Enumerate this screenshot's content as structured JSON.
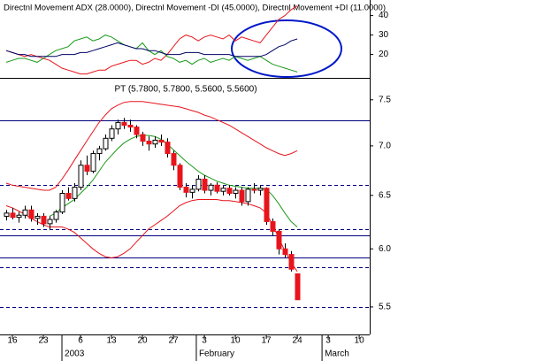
{
  "chart_data": [
    {
      "type": "line",
      "title": "Directnl Movement ADX (28.0000), Directnl Movement -DI (45.0000), Directnl Movement +DI (11.0000)",
      "x": [
        -1,
        0,
        1,
        2,
        3,
        4,
        5,
        6,
        7,
        8,
        9,
        10,
        11,
        12,
        13,
        14,
        15,
        16,
        17,
        18,
        19,
        20,
        21,
        22,
        23,
        24,
        25,
        26,
        27,
        28,
        29,
        30,
        31,
        32,
        33,
        34,
        35,
        36,
        37,
        38,
        39,
        40,
        41,
        42,
        43,
        44,
        45,
        46
      ],
      "xlim": [
        -2,
        57.7
      ],
      "ylim": [
        8,
        48
      ],
      "yticks": [
        20,
        30,
        40
      ],
      "series": [
        {
          "color": "#e8141c",
          "values": [
            22,
            21,
            20,
            19,
            20,
            19,
            18,
            17,
            15,
            13,
            12,
            11,
            10,
            10,
            11,
            12,
            12,
            14,
            15,
            16,
            17,
            17,
            15,
            16,
            18,
            17,
            20,
            24,
            28,
            30,
            29,
            27,
            29,
            30,
            29,
            28,
            30,
            27,
            29,
            28,
            27,
            26,
            30,
            34,
            38,
            40,
            43,
            45
          ]
        },
        {
          "color": "#1a9a1a",
          "values": [
            16,
            17,
            18,
            18,
            17,
            16,
            18,
            20,
            22,
            23,
            24,
            27,
            28,
            29,
            27,
            28,
            30,
            29,
            27,
            25,
            24,
            23,
            26,
            22,
            20,
            22,
            19,
            18,
            16,
            17,
            15,
            17,
            18,
            16,
            17,
            18,
            17,
            19,
            18,
            17,
            18,
            19,
            17,
            15,
            14,
            13,
            12,
            11
          ]
        },
        {
          "color": "#000066",
          "values": [
            22,
            21,
            20,
            20,
            19,
            19,
            19,
            19,
            19,
            20,
            20,
            20,
            21,
            21,
            22,
            23,
            24,
            25,
            26,
            25,
            24,
            23,
            23,
            22,
            22,
            21,
            20,
            20,
            20,
            21,
            21,
            21,
            20,
            20,
            20,
            20,
            20,
            19,
            19,
            19,
            19,
            19,
            20,
            22,
            24,
            25,
            27,
            28
          ]
        }
      ]
    },
    {
      "type": "candlestick",
      "title": "PT (5.7800, 5.7800, 5.5600, 5.5600)",
      "x": [
        -1,
        0,
        1,
        2,
        3,
        4,
        5,
        6,
        7,
        8,
        9,
        10,
        11,
        12,
        13,
        14,
        15,
        16,
        17,
        18,
        19,
        20,
        21,
        22,
        23,
        24,
        25,
        26,
        27,
        28,
        29,
        30,
        31,
        32,
        33,
        34,
        35,
        36,
        37,
        38,
        39,
        40,
        41,
        42,
        43,
        44,
        45,
        46
      ],
      "open": [
        6.3,
        6.33,
        6.29,
        6.31,
        6.36,
        6.28,
        6.3,
        6.23,
        6.27,
        6.34,
        6.52,
        6.47,
        6.58,
        6.8,
        6.74,
        6.92,
        6.97,
        7.08,
        7.18,
        7.25,
        7.22,
        7.2,
        7.12,
        7.05,
        7.02,
        7.06,
        7.04,
        6.92,
        6.8,
        6.58,
        6.53,
        6.56,
        6.66,
        6.55,
        6.6,
        6.54,
        6.57,
        6.52,
        6.55,
        6.44,
        6.56,
        6.55,
        6.57,
        6.25,
        6.16,
        6.0,
        5.95,
        5.78
      ],
      "high": [
        6.36,
        6.38,
        6.34,
        6.4,
        6.4,
        6.33,
        6.33,
        6.3,
        6.36,
        6.55,
        6.58,
        6.62,
        6.85,
        6.9,
        6.95,
        7.0,
        7.12,
        7.22,
        7.28,
        7.3,
        7.28,
        7.22,
        7.15,
        7.1,
        7.1,
        7.12,
        7.08,
        6.95,
        6.82,
        6.62,
        6.6,
        6.7,
        6.7,
        6.62,
        6.63,
        6.6,
        6.6,
        6.58,
        6.58,
        6.58,
        6.62,
        6.6,
        6.58,
        6.28,
        6.18,
        6.05,
        5.98,
        5.78
      ],
      "low": [
        6.26,
        6.27,
        6.24,
        6.28,
        6.25,
        6.22,
        6.2,
        6.17,
        6.24,
        6.32,
        6.45,
        6.44,
        6.55,
        6.7,
        6.72,
        6.85,
        6.95,
        7.05,
        7.12,
        7.18,
        7.15,
        7.08,
        7.0,
        6.95,
        6.98,
        7.0,
        6.88,
        6.75,
        6.55,
        6.48,
        6.47,
        6.54,
        6.52,
        6.5,
        6.52,
        6.5,
        6.5,
        6.47,
        6.4,
        6.4,
        6.52,
        6.5,
        6.22,
        6.12,
        5.95,
        5.92,
        5.8,
        5.56
      ],
      "close": [
        6.33,
        6.29,
        6.31,
        6.36,
        6.28,
        6.3,
        6.23,
        6.27,
        6.34,
        6.52,
        6.47,
        6.58,
        6.8,
        6.74,
        6.92,
        6.97,
        7.08,
        7.18,
        7.25,
        7.22,
        7.2,
        7.12,
        7.05,
        7.02,
        7.06,
        7.04,
        6.92,
        6.8,
        6.58,
        6.53,
        6.56,
        6.66,
        6.55,
        6.6,
        6.54,
        6.57,
        6.52,
        6.55,
        6.44,
        6.56,
        6.55,
        6.57,
        6.25,
        6.16,
        6.0,
        5.95,
        5.82,
        5.56
      ],
      "up_color": "#ffffff",
      "down_color": "#e8141c",
      "overlays": [
        {
          "color": "#e8141c",
          "values": [
            6.62,
            6.6,
            6.59,
            6.58,
            6.57,
            6.56,
            6.55,
            6.55,
            6.58,
            6.66,
            6.75,
            6.85,
            6.95,
            7.05,
            7.15,
            7.25,
            7.33,
            7.4,
            7.44,
            7.47,
            7.48,
            7.48,
            7.48,
            7.47,
            7.46,
            7.45,
            7.44,
            7.43,
            7.42,
            7.4,
            7.38,
            7.36,
            7.33,
            7.31,
            7.28,
            7.25,
            7.22,
            7.18,
            7.14,
            7.1,
            7.06,
            7.02,
            6.98,
            6.95,
            6.92,
            6.9,
            6.92,
            6.95
          ]
        },
        {
          "color": "#e8141c",
          "values": [
            6.4,
            6.38,
            6.35,
            6.32,
            6.28,
            6.25,
            6.22,
            6.2,
            6.2,
            6.2,
            6.18,
            6.15,
            6.1,
            6.05,
            6.0,
            5.96,
            5.93,
            5.92,
            5.93,
            5.96,
            6.0,
            6.06,
            6.12,
            6.18,
            6.22,
            6.26,
            6.3,
            6.35,
            6.4,
            6.43,
            6.45,
            6.46,
            6.46,
            6.46,
            6.46,
            6.45,
            6.45,
            6.44,
            6.43,
            6.42,
            6.4,
            6.38,
            6.33,
            6.22,
            6.1,
            5.98,
            5.88,
            5.8
          ]
        },
        {
          "color": "#1a9a1a",
          "values": [
            null,
            null,
            null,
            null,
            null,
            null,
            null,
            6.3,
            6.33,
            6.38,
            6.42,
            6.46,
            6.52,
            6.58,
            6.65,
            6.74,
            6.83,
            6.9,
            6.97,
            7.03,
            7.07,
            7.1,
            7.11,
            7.11,
            7.1,
            7.07,
            7.02,
            6.96,
            6.9,
            6.84,
            6.79,
            6.74,
            6.7,
            6.67,
            6.64,
            6.62,
            6.6,
            6.59,
            6.58,
            6.57,
            6.57,
            6.57,
            6.56,
            6.5,
            6.42,
            6.33,
            6.25,
            6.2
          ]
        }
      ],
      "hline_color": "#000080",
      "hlines": [
        {
          "value": 7.27,
          "style": "solid"
        },
        {
          "value": 6.6,
          "style": "dashed"
        },
        {
          "value": 6.18,
          "style": "dashed"
        },
        {
          "value": 6.12,
          "style": "solid"
        },
        {
          "value": 5.92,
          "style": "solid"
        },
        {
          "value": 5.84,
          "style": "dashed"
        },
        {
          "value": 5.5,
          "style": "dashed"
        }
      ],
      "log": true,
      "ylim": [
        5.37,
        7.73
      ],
      "yticks": [
        5.5,
        {
          "value": 6,
          "label": "6.0"
        },
        6.5,
        {
          "value": 7,
          "label": "7.0"
        },
        7.5
      ],
      "xlim": [
        -2,
        57.7
      ],
      "xticks": [
        {
          "value": 0,
          "label": "16"
        },
        {
          "value": 5,
          "label": "23"
        },
        {
          "value": 11,
          "label": "6"
        },
        {
          "value": 16,
          "label": "13"
        },
        {
          "value": 21,
          "label": "20"
        },
        {
          "value": 26,
          "label": "27"
        },
        {
          "value": 31,
          "label": "3"
        },
        {
          "value": 36,
          "label": "10"
        },
        {
          "value": 41,
          "label": "17"
        },
        {
          "value": 46,
          "label": "24"
        },
        {
          "value": 51,
          "label": "3"
        },
        {
          "value": 56,
          "label": "10"
        }
      ],
      "x2ticks": [
        {
          "value": 8,
          "label": "2003"
        },
        {
          "value": 29.7,
          "label": "February"
        },
        {
          "value": 50,
          "label": "March"
        }
      ]
    }
  ]
}
